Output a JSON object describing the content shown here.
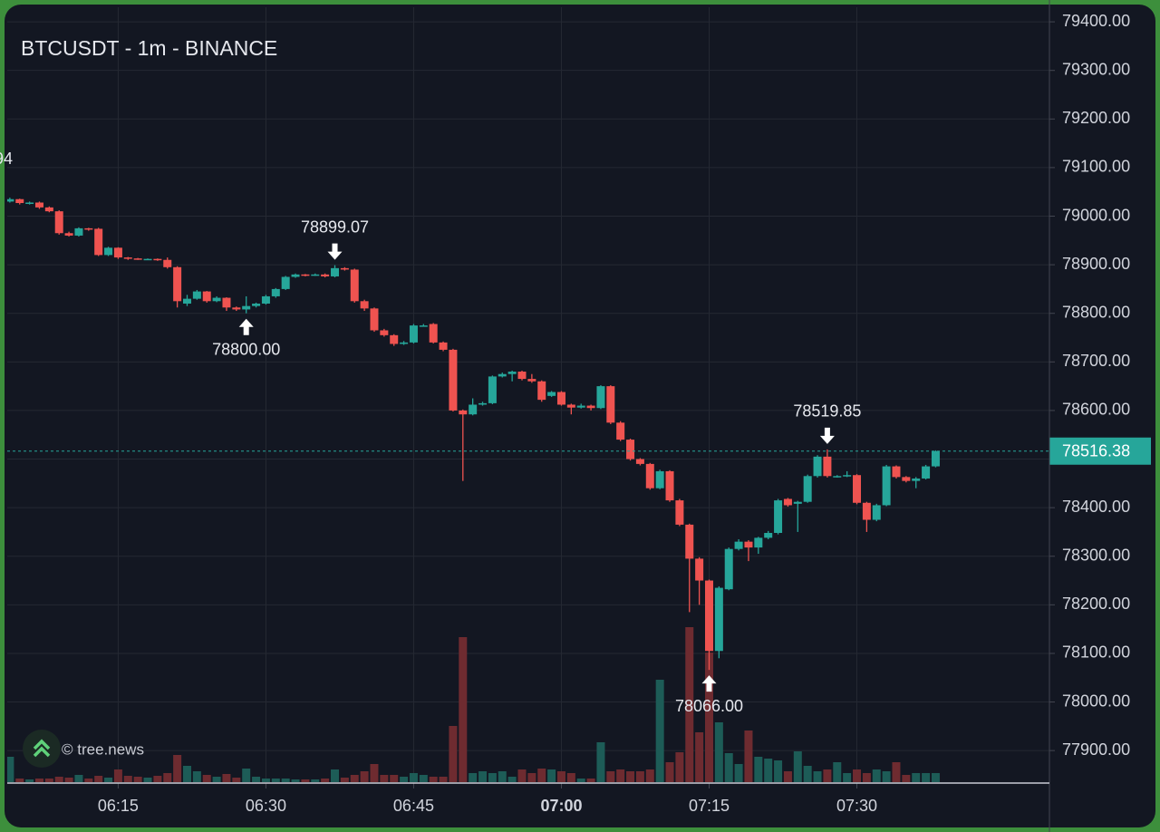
{
  "chart_data": {
    "type": "candlestick",
    "title": "BTCUSDT - 1m - BINANCE",
    "watermark": "© tree.news",
    "clipped_label": "94",
    "x": [
      "06:04",
      "06:05",
      "06:06",
      "06:07",
      "06:08",
      "06:09",
      "06:10",
      "06:11",
      "06:12",
      "06:13",
      "06:14",
      "06:15",
      "06:16",
      "06:17",
      "06:18",
      "06:19",
      "06:20",
      "06:21",
      "06:22",
      "06:23",
      "06:24",
      "06:25",
      "06:26",
      "06:27",
      "06:28",
      "06:29",
      "06:30",
      "06:31",
      "06:32",
      "06:33",
      "06:34",
      "06:35",
      "06:36",
      "06:37",
      "06:38",
      "06:39",
      "06:40",
      "06:41",
      "06:42",
      "06:43",
      "06:44",
      "06:45",
      "06:46",
      "06:47",
      "06:48",
      "06:49",
      "06:50",
      "06:51",
      "06:52",
      "06:53",
      "06:54",
      "06:55",
      "06:56",
      "06:57",
      "06:58",
      "06:59",
      "07:00",
      "07:01",
      "07:02",
      "07:03",
      "07:04",
      "07:05",
      "07:06",
      "07:07",
      "07:08",
      "07:09",
      "07:10",
      "07:11",
      "07:12",
      "07:13",
      "07:14",
      "07:15",
      "07:16",
      "07:17",
      "07:18",
      "07:19",
      "07:20",
      "07:21",
      "07:22",
      "07:23",
      "07:24",
      "07:25",
      "07:26",
      "07:27",
      "07:28",
      "07:29",
      "07:30",
      "07:31",
      "07:32",
      "07:33",
      "07:34",
      "07:35",
      "07:36",
      "07:37",
      "07:38"
    ],
    "open": [
      79030,
      79035,
      79027,
      79028,
      79018,
      79010,
      78965,
      78960,
      78975,
      78974,
      78920,
      78935,
      78915,
      78913,
      78912,
      78912,
      78910,
      78895,
      78820,
      78830,
      78845,
      78825,
      78832,
      78812,
      78808,
      78815,
      78820,
      78835,
      78850,
      78875,
      78880,
      78878,
      78880,
      78876,
      78893,
      78890,
      78825,
      78810,
      78765,
      78755,
      78737,
      78740,
      78775,
      78778,
      78740,
      78725,
      78600,
      78592,
      78612,
      78615,
      78670,
      78675,
      78680,
      78665,
      78660,
      78630,
      78638,
      78612,
      78606,
      78610,
      78605,
      78650,
      78575,
      78540,
      78500,
      78490,
      78440,
      78475,
      78415,
      78365,
      78295,
      78250,
      78105,
      78232,
      78315,
      78330,
      78318,
      78338,
      78348,
      78418,
      78408,
      78412,
      78465,
      78505,
      78465,
      78465,
      78467,
      78410,
      78375,
      78405,
      78485,
      78463,
      78455,
      78460,
      78485
    ],
    "high": [
      79038,
      79036,
      79030,
      79030,
      79020,
      79012,
      78968,
      78977,
      78976,
      78976,
      78937,
      78936,
      78916,
      78914,
      78913,
      78913,
      78915,
      78897,
      78838,
      78848,
      78846,
      78835,
      78833,
      78814,
      78835,
      78822,
      78838,
      78852,
      78877,
      78882,
      78881,
      78882,
      78882,
      78899.07,
      78895,
      78892,
      78828,
      78812,
      78768,
      78757,
      78743,
      78778,
      78778,
      78780,
      78742,
      78727,
      78602,
      78625,
      78618,
      78672,
      78678,
      78682,
      78682,
      78675,
      78662,
      78640,
      78640,
      78614,
      78614,
      78612,
      78652,
      78652,
      78578,
      78542,
      78502,
      78492,
      78478,
      78477,
      78418,
      78367,
      78298,
      78252,
      78238,
      78318,
      78335,
      78333,
      78340,
      78352,
      78418,
      78420,
      78414,
      78468,
      78508,
      78519.85,
      78467,
      78475,
      78469,
      78412,
      78408,
      78488,
      78487,
      78465,
      78463,
      78488,
      78518
    ],
    "low": [
      79028,
      79024,
      79024,
      79015,
      79008,
      78962,
      78958,
      78958,
      78970,
      78918,
      78918,
      78912,
      78910,
      78910,
      78911,
      78908,
      78892,
      78812,
      78815,
      78828,
      78822,
      78823,
      78805,
      78805,
      78800,
      78812,
      78818,
      78832,
      78848,
      78873,
      78876,
      78877,
      78874,
      78874,
      78888,
      78822,
      78805,
      78762,
      78752,
      78733,
      78735,
      78738,
      78773,
      78738,
      78722,
      78598,
      78455,
      78590,
      78610,
      78613,
      78668,
      78660,
      78662,
      78657,
      78618,
      78628,
      78610,
      78592,
      78604,
      78600,
      78603,
      78572,
      78537,
      78497,
      78487,
      78437,
      78438,
      78412,
      78362,
      78185,
      78200,
      78066,
      78090,
      78230,
      78312,
      78290,
      78305,
      78335,
      78345,
      78402,
      78350,
      78410,
      78462,
      78462,
      78462,
      78463,
      78407,
      78350,
      78372,
      78403,
      78460,
      78452,
      78440,
      78458,
      78483
    ],
    "close": [
      79035,
      79027,
      79028,
      79018,
      79010,
      78965,
      78960,
      78975,
      78974,
      78920,
      78935,
      78915,
      78913,
      78912,
      78912,
      78910,
      78895,
      78825,
      78830,
      78845,
      78825,
      78832,
      78812,
      78808,
      78815,
      78820,
      78835,
      78850,
      78875,
      78880,
      78878,
      78880,
      78876,
      78893,
      78890,
      78825,
      78810,
      78765,
      78755,
      78737,
      78740,
      78775,
      78775,
      78740,
      78725,
      78600,
      78592,
      78612,
      78615,
      78670,
      78675,
      78680,
      78665,
      78660,
      78622,
      78638,
      78612,
      78606,
      78610,
      78605,
      78650,
      78575,
      78540,
      78500,
      78490,
      78440,
      78475,
      78415,
      78365,
      78295,
      78250,
      78105,
      78235,
      78315,
      78330,
      78318,
      78338,
      78348,
      78415,
      78405,
      78412,
      78465,
      78505,
      78465,
      78465,
      78467,
      78410,
      78375,
      78405,
      78485,
      78463,
      78455,
      78460,
      78485,
      78516.38
    ],
    "volume": [
      28,
      4,
      3,
      4,
      4,
      6,
      5,
      8,
      4,
      7,
      5,
      14,
      7,
      6,
      5,
      7,
      10,
      30,
      18,
      12,
      8,
      6,
      9,
      5,
      15,
      6,
      4,
      4,
      4,
      3,
      3,
      3,
      4,
      14,
      5,
      8,
      12,
      20,
      8,
      8,
      6,
      10,
      8,
      6,
      6,
      62,
      160,
      10,
      12,
      10,
      12,
      6,
      14,
      10,
      15,
      14,
      12,
      10,
      4,
      4,
      44,
      12,
      14,
      12,
      12,
      14,
      113,
      22,
      33,
      171,
      55,
      143,
      66,
      32,
      20,
      57,
      28,
      26,
      24,
      12,
      34,
      18,
      12,
      14,
      22,
      10,
      14,
      10,
      14,
      12,
      22,
      8,
      10,
      10,
      10
    ],
    "up_color": "#26a69a",
    "down_color": "#ef5350",
    "volume_up_color": "#1d5c57",
    "volume_down_color": "#6e2b30",
    "ylim": [
      77835,
      79430
    ],
    "yticks": [
      {
        "value": 79400,
        "label": "79400.00"
      },
      {
        "value": 79300,
        "label": "79300.00"
      },
      {
        "value": 79200,
        "label": "79200.00"
      },
      {
        "value": 79100,
        "label": "79100.00"
      },
      {
        "value": 79000,
        "label": "79000.00"
      },
      {
        "value": 78900,
        "label": "78900.00"
      },
      {
        "value": 78800,
        "label": "78800.00"
      },
      {
        "value": 78700,
        "label": "78700.00"
      },
      {
        "value": 78600,
        "label": "78600.00"
      },
      {
        "value": 78500,
        "label": "78500.00"
      },
      {
        "value": 78400,
        "label": "78400.00"
      },
      {
        "value": 78300,
        "label": "78300.00"
      },
      {
        "value": 78200,
        "label": "78200.00"
      },
      {
        "value": 78100,
        "label": "78100.00"
      },
      {
        "value": 78000,
        "label": "78000.00"
      },
      {
        "value": 77900,
        "label": "77900.00"
      }
    ],
    "xlim": [
      "06:03",
      "07:49"
    ],
    "xticks": [
      "06:15",
      "06:30",
      "06:45",
      "07:00",
      "07:15",
      "07:30"
    ],
    "grid": true,
    "last_price": 78516.38,
    "annotations": [
      {
        "x": "06:37",
        "value": 78899.07,
        "side": "above"
      },
      {
        "x": "06:28",
        "value": 78800,
        "label": "78800.00",
        "side": "below"
      },
      {
        "x": "07:27",
        "value": 78519.85,
        "side": "above"
      },
      {
        "x": "07:15",
        "value": 78066,
        "label": "78066.00",
        "side": "below"
      }
    ]
  }
}
